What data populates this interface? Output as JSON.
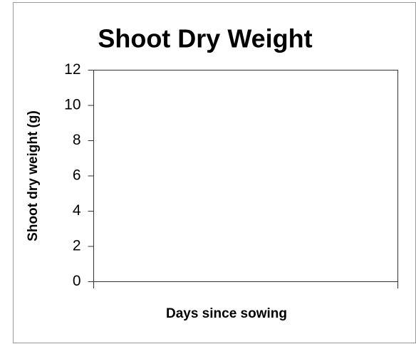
{
  "chart_data": {
    "type": "line",
    "title": "Shoot Dry Weight",
    "x_label": "Days since sowing",
    "y_label": "Shoot dry weight (g)",
    "series": [],
    "ylim": [
      0,
      12
    ],
    "yticks": [
      0,
      2,
      4,
      6,
      8,
      10,
      12
    ],
    "grid": false
  }
}
